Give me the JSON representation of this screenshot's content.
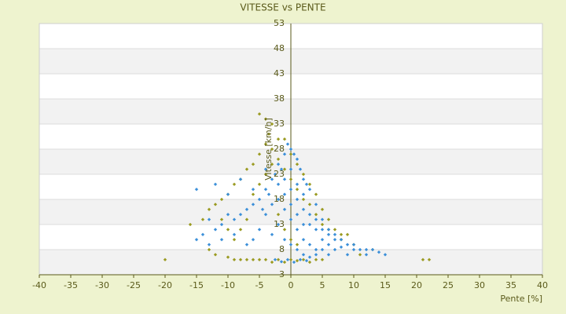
{
  "chart_data": {
    "type": "scatter",
    "title": "VITESSE vs PENTE",
    "x_label": "Pente [%]",
    "y_label": "Vitesse [km/h]",
    "xlim": [
      -40,
      40
    ],
    "xticks": [
      -40,
      -35,
      -30,
      -25,
      -20,
      -15,
      -10,
      -5,
      0,
      5,
      10,
      15,
      20,
      25,
      30,
      35,
      40
    ],
    "ylim": [
      3,
      53
    ],
    "yticks": [
      3,
      8,
      13,
      18,
      23,
      28,
      33,
      38,
      43,
      48,
      53
    ],
    "grid": true,
    "series": [
      {
        "color": "#9a9a20",
        "x": [
          -5,
          -4,
          -3,
          -3.5,
          -2,
          -4,
          -5,
          -6,
          -7,
          -8,
          -9,
          -10,
          -11,
          -12,
          -13,
          -14,
          -16,
          -20,
          22,
          21,
          -3,
          -2,
          -1,
          0,
          1,
          2,
          3,
          4,
          5,
          6,
          8,
          10,
          11,
          13,
          -6,
          -5,
          -4,
          -3,
          -2,
          -1,
          0,
          1,
          2,
          3,
          4,
          5,
          -7,
          -8,
          -9,
          -10,
          -12,
          -13,
          -6,
          -5,
          -4,
          -3,
          -7,
          -8,
          -9,
          -10,
          -11,
          -1,
          0,
          1,
          2,
          3,
          4,
          5,
          6,
          7,
          8,
          9,
          -2,
          -1,
          0,
          1
        ],
        "values": [
          35,
          34,
          33,
          31,
          30,
          29,
          27,
          25,
          24,
          22,
          21,
          19,
          18,
          17,
          16,
          14,
          13,
          6,
          6,
          6,
          28,
          26,
          24,
          22,
          20,
          18,
          17,
          15,
          13,
          12,
          11,
          9,
          7,
          8,
          6,
          6,
          6,
          5.5,
          6,
          5.5,
          6,
          5.8,
          6,
          5.5,
          6,
          6,
          6,
          6,
          6,
          6.5,
          7,
          8,
          19,
          21,
          23,
          25,
          14,
          12,
          10,
          12,
          14,
          30,
          27,
          25,
          23,
          21,
          19,
          16,
          14,
          12,
          10,
          11,
          15,
          12,
          10,
          9
        ]
      },
      {
        "color": "#3b8fd9",
        "x": [
          -2,
          -1,
          0,
          1,
          2,
          3,
          4,
          5,
          6,
          7,
          8,
          9,
          10,
          11,
          12,
          13,
          14,
          15,
          -3,
          -4,
          -5,
          -6,
          -7,
          -8,
          -9,
          -10,
          -11,
          -12,
          -13,
          -14,
          -15,
          -15,
          -12,
          -10,
          -8,
          -6,
          -4,
          -2,
          -1,
          0,
          1,
          2,
          3,
          4,
          0,
          1,
          2,
          3,
          4,
          5,
          6,
          7,
          -1,
          0,
          1,
          2,
          -2,
          -3,
          -1,
          0,
          1,
          2,
          -0.5,
          0.5,
          1.5,
          2.5,
          -1.5,
          -2.5,
          3,
          4,
          5,
          6,
          8,
          9,
          10,
          12,
          -5,
          -6,
          -7,
          -9,
          -11,
          -13,
          -4,
          -3,
          -2,
          -1,
          0,
          1,
          2,
          3,
          4,
          5,
          6,
          7,
          -0.5,
          0.5,
          1.5,
          2.5,
          -1.5,
          -2.5,
          -3.5,
          -4.5
        ],
        "values": [
          25,
          27,
          28,
          26,
          22,
          20,
          17,
          14,
          12,
          11,
          10,
          9,
          9,
          8,
          8,
          8,
          7.5,
          7,
          22,
          20,
          18,
          17,
          16,
          15,
          14,
          15,
          13,
          12,
          14,
          11,
          20,
          10,
          21,
          19,
          22,
          20,
          24,
          18,
          16,
          14,
          12,
          10,
          9,
          8,
          20,
          18,
          16,
          13,
          12,
          10,
          9,
          8,
          22,
          24,
          21,
          19,
          13,
          11,
          10,
          9,
          8,
          7,
          6,
          5.5,
          6,
          5.8,
          5.6,
          6,
          6.5,
          7,
          8,
          7,
          8.5,
          7,
          8,
          7,
          12,
          10,
          9,
          11,
          10,
          9,
          15,
          17,
          21,
          19,
          17,
          15,
          13,
          15,
          14,
          12,
          11,
          10,
          29,
          27,
          24,
          21,
          24,
          23,
          19,
          16
        ]
      }
    ]
  }
}
